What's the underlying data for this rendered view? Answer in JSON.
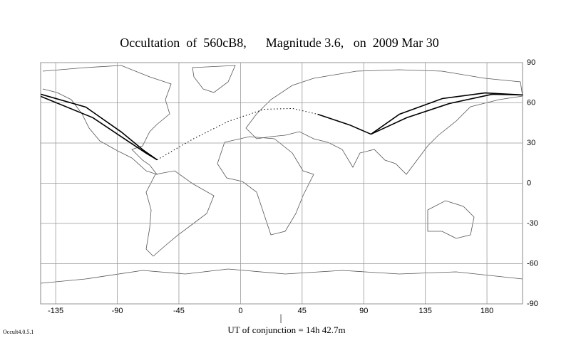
{
  "chart_data": {
    "type": "map-path",
    "title": "Occultation  of  560cB8,      Magnitude 3.6,   on  2009 Mar 30",
    "xlim": [
      -146,
      206
    ],
    "ylim": [
      -90,
      90
    ],
    "xticks": [
      -135,
      -90,
      -45,
      0,
      45,
      90,
      135,
      180
    ],
    "yticks": [
      90,
      60,
      30,
      0,
      -30,
      -60,
      -90
    ],
    "grid": true,
    "series": [
      {
        "color": "#000000",
        "dash": false,
        "x": [
          -145.8,
          -113,
          -87,
          -71.4,
          -60.9
        ],
        "y": [
          66.4,
          56.8,
          38.2,
          25,
          17.5
        ]
      },
      {
        "color": "#000000",
        "dash": false,
        "x": [
          -145.8,
          -107.8,
          -84.4,
          -68.8,
          -60.9
        ],
        "y": [
          64.8,
          48.9,
          32.9,
          22.3,
          17.5
        ]
      },
      {
        "color": "#000000",
        "dash": true,
        "x": [
          -60.9,
          -34.9,
          -8.9,
          17.2,
          38,
          56.3
        ],
        "y": [
          17.5,
          32.9,
          46.2,
          55.2,
          55.8,
          51.5
        ]
      },
      {
        "color": "#000000",
        "dash": false,
        "x": [
          56.3,
          79.7,
          95.3
        ],
        "y": [
          51.5,
          43.5,
          36.6
        ]
      },
      {
        "color": "#000000",
        "dash": false,
        "x": [
          95.3,
          116.1,
          147.4,
          178.6,
          206.3
        ],
        "y": [
          36.6,
          51.5,
          63.2,
          67.4,
          65.9
        ]
      },
      {
        "color": "#000000",
        "dash": false,
        "x": [
          95.3,
          121.4,
          152.6,
          183.9,
          206.3
        ],
        "y": [
          36.6,
          48.9,
          59.5,
          66.4,
          65.9
        ]
      }
    ],
    "conjunction_marker": "|",
    "footnote": "UT of conjunction = 14h 42.7m",
    "version": "Occult4.0.5.1"
  }
}
